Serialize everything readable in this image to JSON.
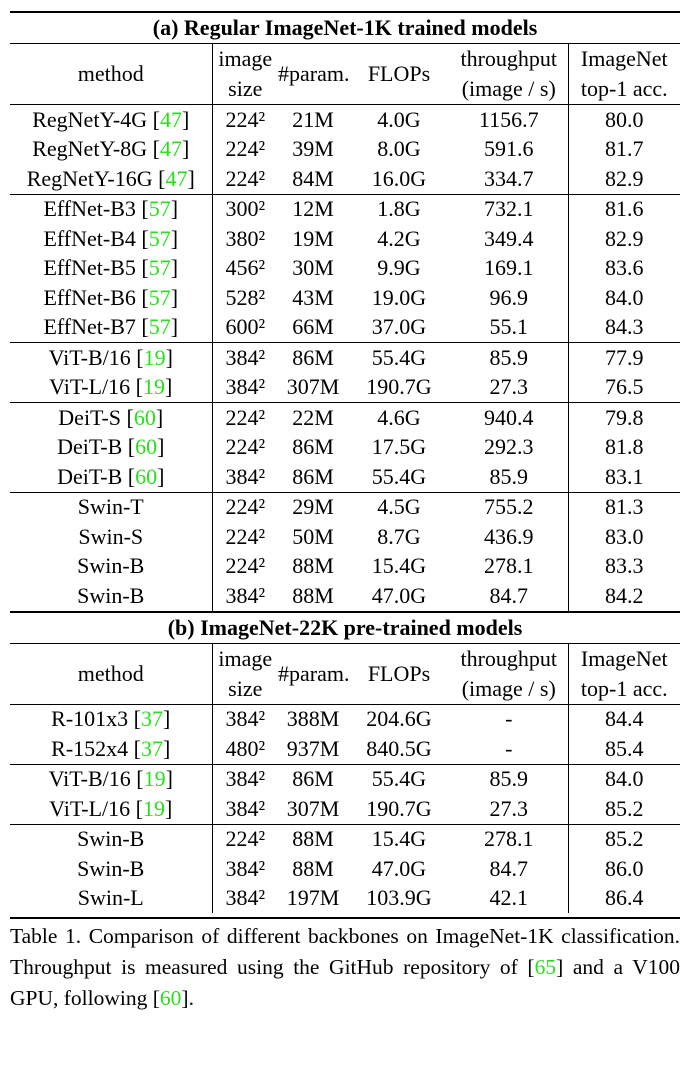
{
  "sections": [
    {
      "title": "(a) Regular ImageNet-1K trained models",
      "header": [
        [
          "method"
        ],
        [
          "image",
          "size"
        ],
        [
          "#param."
        ],
        [
          "FLOPs"
        ],
        [
          "throughput",
          "(image / s)"
        ],
        [
          "ImageNet",
          "top-1 acc."
        ]
      ],
      "groups": [
        [
          [
            [
              "RegNetY-4G [",
              "47",
              "]"
            ],
            "224²",
            "21M",
            "4.0G",
            "1156.7",
            "80.0"
          ],
          [
            [
              "RegNetY-8G [",
              "47",
              "]"
            ],
            "224²",
            "39M",
            "8.0G",
            "591.6",
            "81.7"
          ],
          [
            [
              "RegNetY-16G [",
              "47",
              "]"
            ],
            "224²",
            "84M",
            "16.0G",
            "334.7",
            "82.9"
          ]
        ],
        [
          [
            [
              "EffNet-B3 [",
              "57",
              "]"
            ],
            "300²",
            "12M",
            "1.8G",
            "732.1",
            "81.6"
          ],
          [
            [
              "EffNet-B4 [",
              "57",
              "]"
            ],
            "380²",
            "19M",
            "4.2G",
            "349.4",
            "82.9"
          ],
          [
            [
              "EffNet-B5 [",
              "57",
              "]"
            ],
            "456²",
            "30M",
            "9.9G",
            "169.1",
            "83.6"
          ],
          [
            [
              "EffNet-B6 [",
              "57",
              "]"
            ],
            "528²",
            "43M",
            "19.0G",
            "96.9",
            "84.0"
          ],
          [
            [
              "EffNet-B7 [",
              "57",
              "]"
            ],
            "600²",
            "66M",
            "37.0G",
            "55.1",
            "84.3"
          ]
        ],
        [
          [
            [
              "ViT-B/16 [",
              "19",
              "]"
            ],
            "384²",
            "86M",
            "55.4G",
            "85.9",
            "77.9"
          ],
          [
            [
              "ViT-L/16 [",
              "19",
              "]"
            ],
            "384²",
            "307M",
            "190.7G",
            "27.3",
            "76.5"
          ]
        ],
        [
          [
            [
              "DeiT-S [",
              "60",
              "]"
            ],
            "224²",
            "22M",
            "4.6G",
            "940.4",
            "79.8"
          ],
          [
            [
              "DeiT-B [",
              "60",
              "]"
            ],
            "224²",
            "86M",
            "17.5G",
            "292.3",
            "81.8"
          ],
          [
            [
              "DeiT-B [",
              "60",
              "]"
            ],
            "384²",
            "86M",
            "55.4G",
            "85.9",
            "83.1"
          ]
        ],
        [
          [
            [
              "Swin-T"
            ],
            "224²",
            "29M",
            "4.5G",
            "755.2",
            "81.3"
          ],
          [
            [
              "Swin-S"
            ],
            "224²",
            "50M",
            "8.7G",
            "436.9",
            "83.0"
          ],
          [
            [
              "Swin-B"
            ],
            "224²",
            "88M",
            "15.4G",
            "278.1",
            "83.3"
          ],
          [
            [
              "Swin-B"
            ],
            "384²",
            "88M",
            "47.0G",
            "84.7",
            "84.2"
          ]
        ]
      ]
    },
    {
      "title": "(b) ImageNet-22K pre-trained models",
      "header": [
        [
          "method"
        ],
        [
          "image",
          "size"
        ],
        [
          "#param."
        ],
        [
          "FLOPs"
        ],
        [
          "throughput",
          "(image / s)"
        ],
        [
          "ImageNet",
          "top-1 acc."
        ]
      ],
      "groups": [
        [
          [
            [
              "R-101x3 [",
              "37",
              "]"
            ],
            "384²",
            "388M",
            "204.6G",
            "-",
            "84.4"
          ],
          [
            [
              "R-152x4 [",
              "37",
              "]"
            ],
            "480²",
            "937M",
            "840.5G",
            "-",
            "85.4"
          ]
        ],
        [
          [
            [
              "ViT-B/16 [",
              "19",
              "]"
            ],
            "384²",
            "86M",
            "55.4G",
            "85.9",
            "84.0"
          ],
          [
            [
              "ViT-L/16 [",
              "19",
              "]"
            ],
            "384²",
            "307M",
            "190.7G",
            "27.3",
            "85.2"
          ]
        ],
        [
          [
            [
              "Swin-B"
            ],
            "224²",
            "88M",
            "15.4G",
            "278.1",
            "85.2"
          ],
          [
            [
              "Swin-B"
            ],
            "384²",
            "88M",
            "47.0G",
            "84.7",
            "86.0"
          ],
          [
            [
              "Swin-L"
            ],
            "384²",
            "197M",
            "103.9G",
            "42.1",
            "86.4"
          ]
        ]
      ]
    }
  ],
  "caption": [
    "Table 1. Comparison of different backbones on ImageNet-1K classification. Throughput is measured using the GitHub repository of [",
    "65",
    "] and a V100 GPU, following [",
    "60",
    "]."
  ]
}
